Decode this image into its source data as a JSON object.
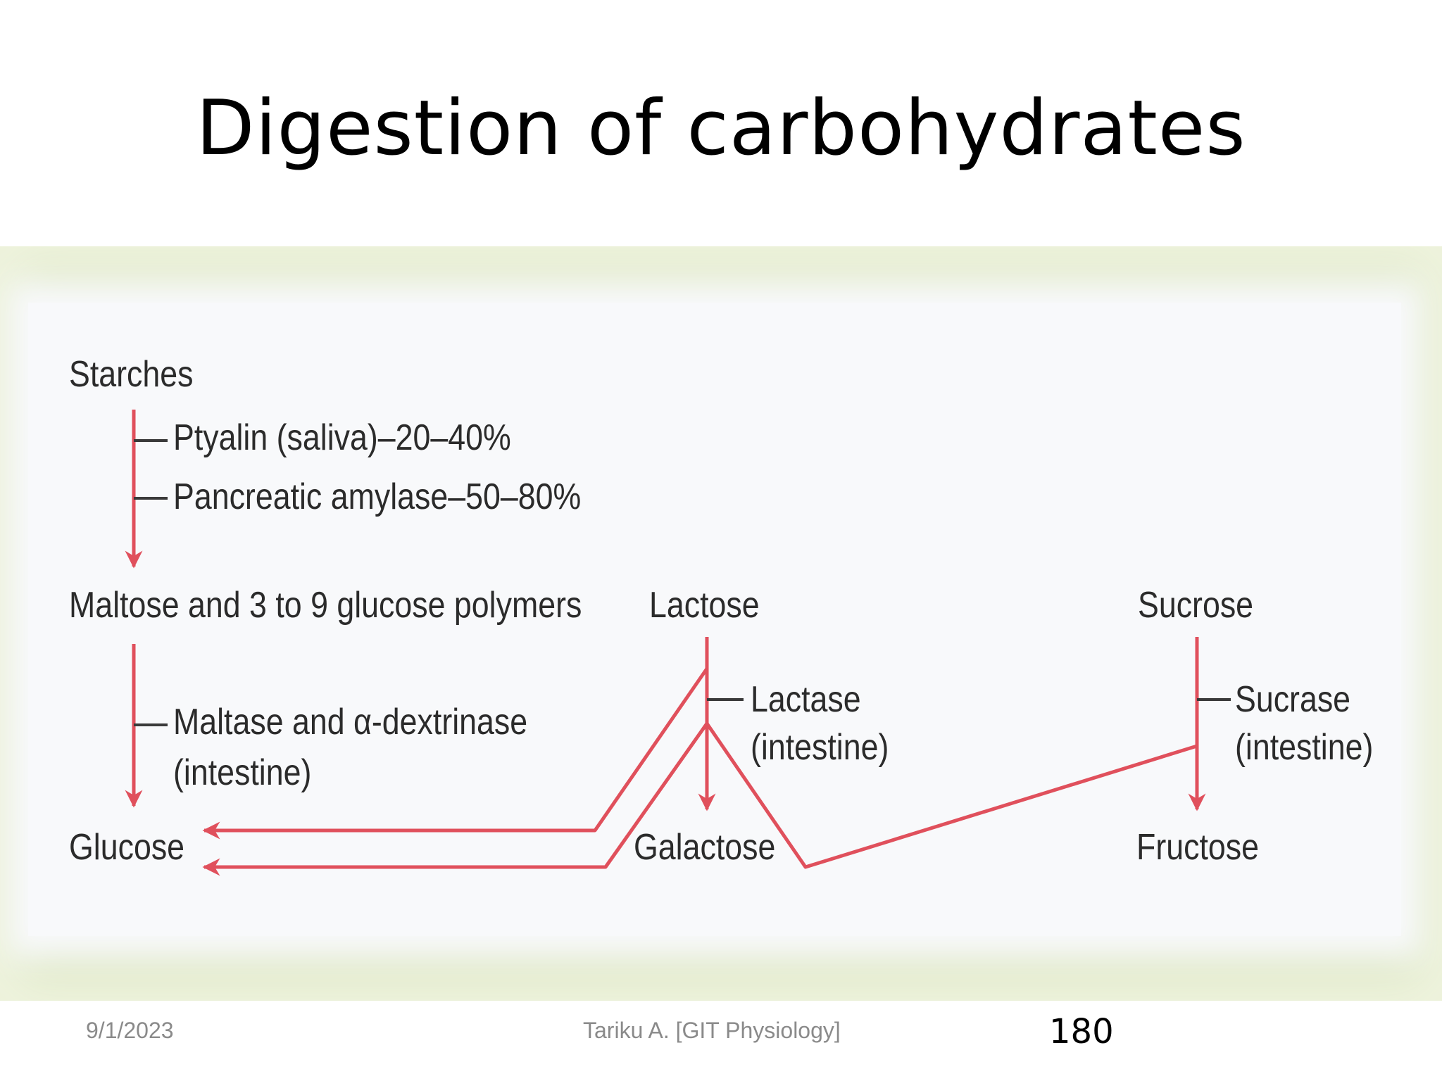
{
  "slide": {
    "title": "Digestion of carbohydrates",
    "footer": {
      "date": "9/1/2023",
      "author": "Tariku A. [GIT Physiology]",
      "page": "180"
    }
  },
  "diagram": {
    "arrow_color": "#e0505c",
    "nodes": {
      "starches": "Starches",
      "maltose": "Maltose and 3 to 9 glucose polymers",
      "lactose": "Lactose",
      "sucrose": "Sucrose",
      "glucose": "Glucose",
      "galactose": "Galactose",
      "fructose": "Fructose"
    },
    "enzymes": {
      "ptyalin": "Ptyalin (saliva)–20–40%",
      "pancreatic_amylase": "Pancreatic amylase–50–80%",
      "maltase_line1": "Maltase and α-dextrinase",
      "maltase_line2": "(intestine)",
      "lactase_line1": "Lactase",
      "lactase_line2": "(intestine)",
      "sucrase_line1": "Sucrase",
      "sucrase_line2": "(intestine)"
    }
  }
}
